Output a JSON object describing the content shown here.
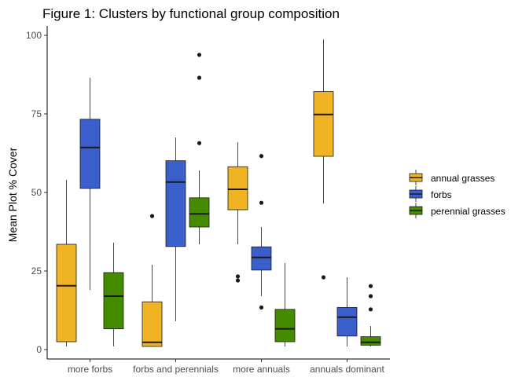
{
  "chart_data": {
    "type": "boxplot",
    "title": "Figure 1: Clusters by functional group composition",
    "xlabel": "",
    "ylabel": "Mean Plot % Cover",
    "ylim": [
      -3,
      103
    ],
    "yticks": [
      0,
      25,
      50,
      75,
      100
    ],
    "grid": false,
    "legend_position": "right",
    "categories": [
      "more forbs",
      "forbs and perennials",
      "more annuals",
      "annuals dominant"
    ],
    "series": [
      {
        "name": "annual grasses",
        "color": "#F0B323",
        "boxes": [
          {
            "min": 1,
            "q1": 2.5,
            "median": 20.3,
            "q3": 33.5,
            "max": 54,
            "outliers": []
          },
          {
            "min": 1,
            "q1": 1,
            "median": 2.3,
            "q3": 15.2,
            "max": 27,
            "outliers": [
              42.5
            ]
          },
          {
            "min": 33.5,
            "q1": 44.5,
            "median": 51,
            "q3": 58.2,
            "max": 66,
            "outliers": [
              23.3,
              22
            ]
          },
          {
            "min": 46.5,
            "q1": 61.5,
            "median": 74.8,
            "q3": 82.1,
            "max": 98.7,
            "outliers": [
              23
            ]
          }
        ]
      },
      {
        "name": "forbs",
        "color": "#3A5FCD",
        "boxes": [
          {
            "min": 19,
            "q1": 51.3,
            "median": 64.3,
            "q3": 73.3,
            "max": 86.5,
            "outliers": []
          },
          {
            "min": 9,
            "q1": 32.8,
            "median": 53.3,
            "q3": 60.1,
            "max": 67.5,
            "outliers": []
          },
          {
            "min": 17,
            "q1": 25.3,
            "median": 29.3,
            "q3": 32.7,
            "max": 39,
            "outliers": [
              61.6,
              46.7,
              13.4
            ]
          },
          {
            "min": 1,
            "q1": 4.3,
            "median": 10.3,
            "q3": 13.4,
            "max": 23,
            "outliers": []
          }
        ]
      },
      {
        "name": "perennial grasses",
        "color": "#458B00",
        "boxes": [
          {
            "min": 1,
            "q1": 6.6,
            "median": 17,
            "q3": 24.5,
            "max": 34,
            "outliers": []
          },
          {
            "min": 33.5,
            "q1": 39,
            "median": 43.2,
            "q3": 48.3,
            "max": 57,
            "outliers": [
              93.8,
              86.5,
              65.7
            ]
          },
          {
            "min": 1,
            "q1": 2.5,
            "median": 6.6,
            "q3": 12.8,
            "max": 27.5,
            "outliers": []
          },
          {
            "min": 1,
            "q1": 1.4,
            "median": 2.3,
            "q3": 4.1,
            "max": 7.5,
            "outliers": [
              20.2,
              17,
              12.8
            ]
          }
        ]
      }
    ]
  }
}
